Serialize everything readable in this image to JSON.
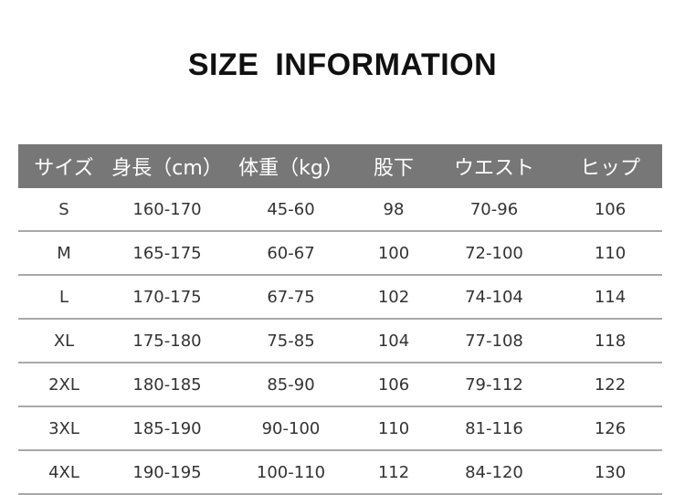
{
  "title": "SIZE INFORMATION",
  "table": {
    "headers": [
      "サイズ",
      "身長（cm）",
      "体重（kg）",
      "股下",
      "ウエスト",
      "ヒップ"
    ],
    "rows": [
      [
        "S",
        "160-170",
        "45-60",
        "98",
        "70-96",
        "106"
      ],
      [
        "M",
        "165-175",
        "60-67",
        "100",
        "72-100",
        "110"
      ],
      [
        "L",
        "170-175",
        "67-75",
        "102",
        "74-104",
        "114"
      ],
      [
        "XL",
        "175-180",
        "75-85",
        "104",
        "77-108",
        "118"
      ],
      [
        "2XL",
        "180-185",
        "85-90",
        "106",
        "79-112",
        "122"
      ],
      [
        "3XL",
        "185-190",
        "90-100",
        "110",
        "81-116",
        "126"
      ],
      [
        "4XL",
        "190-195",
        "100-110",
        "112",
        "84-120",
        "130"
      ]
    ],
    "header_bg": "#777777"
  }
}
